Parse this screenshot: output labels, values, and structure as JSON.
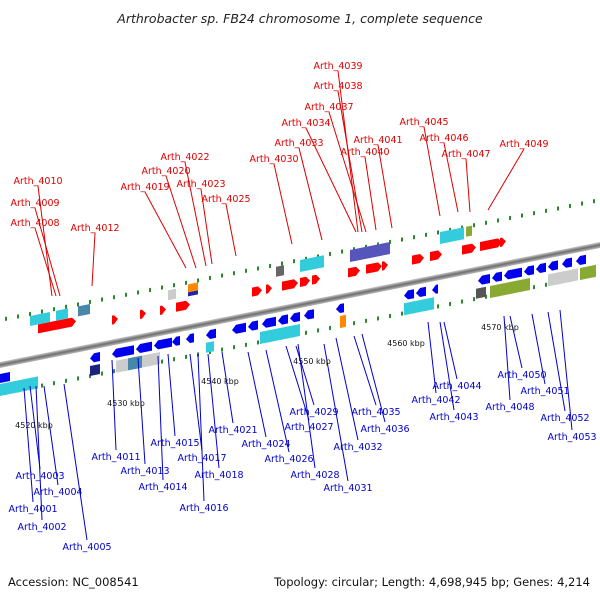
{
  "title": "Arthrobacter sp. FB24 chromosome 1, complete sequence",
  "accession": "Accession: NC_008541",
  "topology": "Topology: circular; Length: 4,698,945 bp; Genes: 4,214",
  "colors": {
    "top_label": "#dd0000",
    "bottom_label": "#0000cc",
    "forward_strand": "#ff0000",
    "reverse_strand": "#0000ee",
    "backbone": "#888888",
    "tick": "#2a8a2a"
  },
  "scale_labels": [
    "4520 kbp",
    "4530 kbp",
    "4540 kbp",
    "4550 kbp",
    "4560 kbp",
    "4570 kbp"
  ],
  "top_genes": [
    "Arth_4039",
    "Arth_4038",
    "Arth_4037",
    "Arth_4034",
    "Arth_4045",
    "Arth_4033",
    "Arth_4041",
    "Arth_4046",
    "Arth_4049",
    "Arth_4022",
    "Arth_4040",
    "Arth_4047",
    "Arth_4030",
    "Arth_4020",
    "Arth_4010",
    "Arth_4019",
    "Arth_4023",
    "Arth_4009",
    "Arth_4025",
    "Arth_4008",
    "Arth_4012"
  ],
  "bottom_genes": [
    "Arth_4044",
    "Arth_4050",
    "Arth_4042",
    "Arth_4051",
    "Arth_4048",
    "Arth_4035",
    "Arth_4043",
    "Arth_4029",
    "Arth_4052",
    "Arth_4027",
    "Arth_4036",
    "Arth_4053",
    "Arth_4021",
    "Arth_4024",
    "Arth_4015",
    "Arth_4032",
    "Arth_4011",
    "Arth_4017",
    "Arth_4026",
    "Arth_4013",
    "Arth_4028",
    "Arth_4018",
    "Arth_4014",
    "Arth_4031",
    "Arth_4003",
    "Arth_4004",
    "Arth_4016",
    "Arth_4001",
    "Arth_4002",
    "Arth_4005"
  ]
}
